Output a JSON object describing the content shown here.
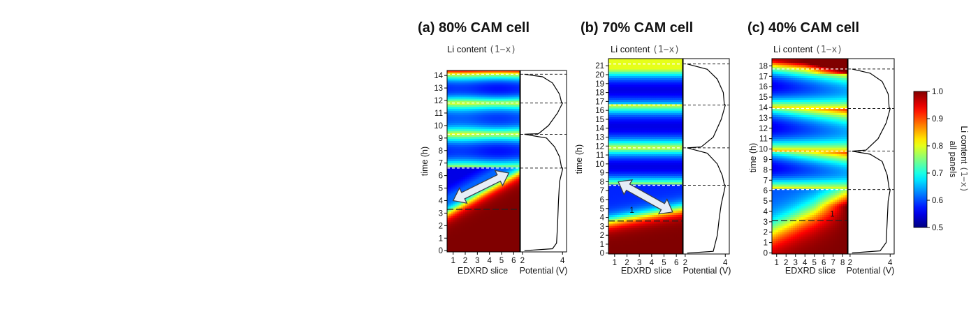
{
  "chart_data": [
    {
      "type": "heatmap",
      "title": "(a) 80% CAM cell",
      "top_label": "Li content",
      "top_label_mono": "(1−x)",
      "xlabel": "EDXRD slice",
      "ylabel": "time (h)",
      "x_ticks": [
        1,
        2,
        3,
        4,
        5,
        6
      ],
      "y_ticks": [
        0,
        1,
        2,
        3,
        4,
        5,
        6,
        7,
        8,
        9,
        10,
        11,
        12,
        13,
        14
      ],
      "xlim": [
        0.5,
        6.5
      ],
      "ylim": [
        -0.1,
        14.4
      ],
      "cycle_boundaries_h": [
        6.6,
        9.3,
        11.8,
        14.1
      ],
      "long_dash_h": 3.3,
      "arrow": {
        "from": [
          1.0,
          4.0
        ],
        "to": [
          5.6,
          6.2
        ]
      },
      "potential_curve_h": [
        [
          0,
          2.1
        ],
        [
          0.15,
          3.5
        ],
        [
          0.6,
          3.7
        ],
        [
          2,
          3.75
        ],
        [
          4,
          3.8
        ],
        [
          5.5,
          3.85
        ],
        [
          6.5,
          4.0
        ],
        [
          6.6,
          4.0
        ],
        [
          6.65,
          3.95
        ],
        [
          7.5,
          3.85
        ],
        [
          8.3,
          3.6
        ],
        [
          9.0,
          3.2
        ],
        [
          9.3,
          2.1
        ],
        [
          9.35,
          2.8
        ],
        [
          10,
          3.3
        ],
        [
          11.0,
          3.75
        ],
        [
          11.8,
          4.0
        ],
        [
          11.85,
          3.95
        ],
        [
          12.5,
          3.85
        ],
        [
          13.4,
          3.5
        ],
        [
          13.9,
          3.0
        ],
        [
          14.1,
          2.1
        ]
      ],
      "potential_xlabel": "Potential (V)",
      "potential_ticks": [
        2,
        4
      ],
      "potential_xlim": [
        1.9,
        4.2
      ]
    },
    {
      "type": "heatmap",
      "title": "(b) 70% CAM cell",
      "top_label": "Li content",
      "top_label_mono": "(1−x)",
      "xlabel": "EDXRD slice",
      "ylabel": "time (h)",
      "x_ticks": [
        1,
        2,
        3,
        4,
        5,
        6
      ],
      "y_ticks": [
        0,
        1,
        2,
        3,
        4,
        5,
        6,
        7,
        8,
        9,
        10,
        11,
        12,
        13,
        14,
        15,
        16,
        17,
        18,
        19,
        20,
        21
      ],
      "xlim": [
        0.5,
        6.5
      ],
      "ylim": [
        -0.1,
        21.8
      ],
      "cycle_boundaries_h": [
        7.6,
        11.8,
        16.6,
        21.2
      ],
      "long_dash_h": 3.6,
      "annotation": "1",
      "annotation_pos": [
        2.4,
        4.5
      ],
      "arrow": {
        "from": [
          1.3,
          8.0
        ],
        "to": [
          5.7,
          4.6
        ]
      },
      "potential_curve_h": [
        [
          0,
          2.1
        ],
        [
          0.2,
          3.4
        ],
        [
          2,
          3.6
        ],
        [
          4,
          3.7
        ],
        [
          5.5,
          3.8
        ],
        [
          7.0,
          3.95
        ],
        [
          7.6,
          4.0
        ],
        [
          7.7,
          3.95
        ],
        [
          8.7,
          3.85
        ],
        [
          10.0,
          3.6
        ],
        [
          11.2,
          3.1
        ],
        [
          11.8,
          2.1
        ],
        [
          11.9,
          2.8
        ],
        [
          13,
          3.4
        ],
        [
          15,
          3.8
        ],
        [
          16.6,
          4.0
        ],
        [
          16.7,
          3.95
        ],
        [
          18,
          3.9
        ],
        [
          19.5,
          3.6
        ],
        [
          20.6,
          3.1
        ],
        [
          21.2,
          2.1
        ]
      ],
      "potential_xlabel": "Potential (V)",
      "potential_ticks": [
        2,
        4
      ],
      "potential_xlim": [
        1.9,
        4.2
      ]
    },
    {
      "type": "heatmap",
      "title": "(c) 40% CAM cell",
      "top_label": "Li content",
      "top_label_mono": "(1−x)",
      "xlabel": "EDXRD slice",
      "ylabel": "time (h)",
      "x_ticks": [
        1,
        2,
        3,
        4,
        5,
        6,
        7,
        8
      ],
      "y_ticks": [
        0,
        1,
        2,
        3,
        4,
        5,
        6,
        7,
        8,
        9,
        10,
        11,
        12,
        13,
        14,
        15,
        16,
        17,
        18
      ],
      "xlim": [
        0.5,
        8.5
      ],
      "ylim": [
        -0.1,
        18.7
      ],
      "cycle_boundaries_h": [
        6.1,
        9.8,
        13.9,
        17.7
      ],
      "long_dash_h": 3.1,
      "annotation": "1",
      "annotation_pos": [
        6.9,
        3.5
      ],
      "potential_curve_h": [
        [
          0,
          2.1
        ],
        [
          0.2,
          3.5
        ],
        [
          0.6,
          3.65
        ],
        [
          1,
          3.8
        ],
        [
          3,
          3.85
        ],
        [
          5,
          3.9
        ],
        [
          6.1,
          4.0
        ],
        [
          6.2,
          3.95
        ],
        [
          7.5,
          3.85
        ],
        [
          8.8,
          3.6
        ],
        [
          9.5,
          3.0
        ],
        [
          9.8,
          2.1
        ],
        [
          9.9,
          2.8
        ],
        [
          11,
          3.4
        ],
        [
          12.5,
          3.8
        ],
        [
          13.9,
          4.0
        ],
        [
          14,
          3.95
        ],
        [
          15.3,
          3.9
        ],
        [
          16.5,
          3.6
        ],
        [
          17.3,
          3.0
        ],
        [
          17.7,
          2.1
        ]
      ],
      "potential_xlabel": "Potential (V)",
      "potential_ticks": [
        2,
        4
      ],
      "potential_xlim": [
        1.9,
        4.2
      ]
    }
  ],
  "colorbar": {
    "label": "Li content",
    "label_mono": "(1−x)",
    "sublabel": "all panels",
    "range": [
      0.5,
      1.0
    ],
    "ticks": [
      0.5,
      0.6,
      0.7,
      0.8,
      0.9,
      1.0
    ],
    "colormap": "jet"
  }
}
